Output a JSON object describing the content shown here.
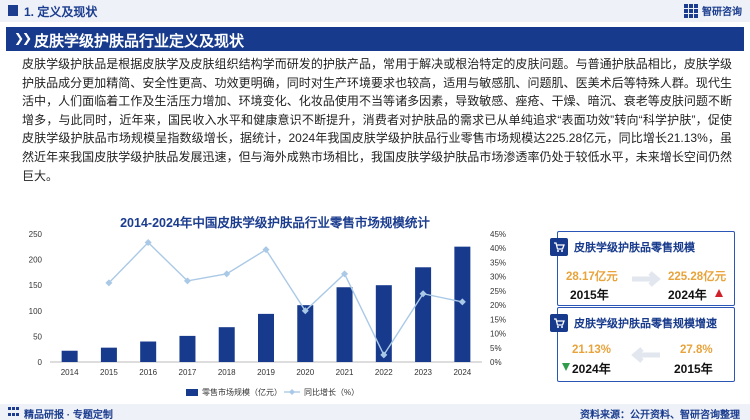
{
  "header": {
    "section_title": "1. 定义及现状",
    "brand": "智研咨询"
  },
  "banner": {
    "title": "皮肤学级护肤品行业定义及现状"
  },
  "intro": "皮肤学级护肤品是根据皮肤学及皮肤组织结构学而研发的护肤产品，常用于解决或根治特定的皮肤问题。与普通护肤品相比，皮肤学级护肤品成分更加精简、安全性更高、功效更明确，同时对生产环境要求也较高，适用与敏感肌、问题肌、医美术后等特殊人群。现代生活中，人们面临着工作及生活压力增加、环境变化、化妆品使用不当等诸多因素，导致敏感、痤疮、干燥、暗沉、衰老等皮肤问题不断增多，与此同时，近年来，国民收入水平和健康意识不断提升，消费者对护肤品的需求已从单纯追求“表面功效”转向“科学护肤”，促使皮肤学级护肤品市场规模呈指数级增长，据统计，2024年我国皮肤学级护肤品行业零售市场规模达225.28亿元，同比增长21.13%，虽然近年来我国皮肤学级护肤品发展迅速，但与海外成熟市场相比，我国皮肤学级护肤品市场渗透率仍处于较低水平，未来增长空间仍然巨大。",
  "chart_data": {
    "type": "bar+line",
    "title": "2014-2024年中国皮肤学级护肤品行业零售市场规模统计",
    "categories": [
      "2014",
      "2015",
      "2016",
      "2017",
      "2018",
      "2019",
      "2020",
      "2021",
      "2022",
      "2023",
      "2024"
    ],
    "series": [
      {
        "name": "零售市场规模（亿元）",
        "type": "bar",
        "axis": "left",
        "color": "#173a8c",
        "values": [
          22,
          28,
          40,
          51,
          68,
          94,
          111,
          146,
          150,
          185,
          225.28
        ]
      },
      {
        "name": "同比增长（%）",
        "type": "line",
        "axis": "right",
        "color": "#aac9e6",
        "values": [
          null,
          27.8,
          42,
          28.5,
          31,
          39.5,
          18,
          31,
          2.5,
          24,
          21.13
        ]
      }
    ],
    "ylim_left": [
      0,
      250
    ],
    "yticks_left": [
      "0",
      "50",
      "100",
      "150",
      "200",
      "250"
    ],
    "ylim_right": [
      0,
      45
    ],
    "yticks_right": [
      "0%",
      "5%",
      "10%",
      "15%",
      "20%",
      "25%",
      "30%",
      "35%",
      "40%",
      "45%"
    ],
    "legend_position": "bottom"
  },
  "cards": [
    {
      "title": "皮肤学级护肤品零售规模",
      "left_value": "28.17亿元",
      "left_year": "2015年",
      "right_value": "225.28亿元",
      "right_year": "2024年",
      "trend": "up"
    },
    {
      "title": "皮肤学级护肤品零售规模增速",
      "left_value": "21.13%",
      "left_year": "2024年",
      "right_value": "27.8%",
      "right_year": "2015年",
      "trend": "down"
    }
  ],
  "footer": {
    "left": "精品研报 · 专题定制",
    "right": "资料来源：公开资料、智研咨询整理"
  },
  "colors": {
    "primary": "#173a8c",
    "line": "#aac9e6",
    "accent_value": "#e8a33b",
    "up": "#d0212b",
    "down": "#2e9c4b"
  }
}
